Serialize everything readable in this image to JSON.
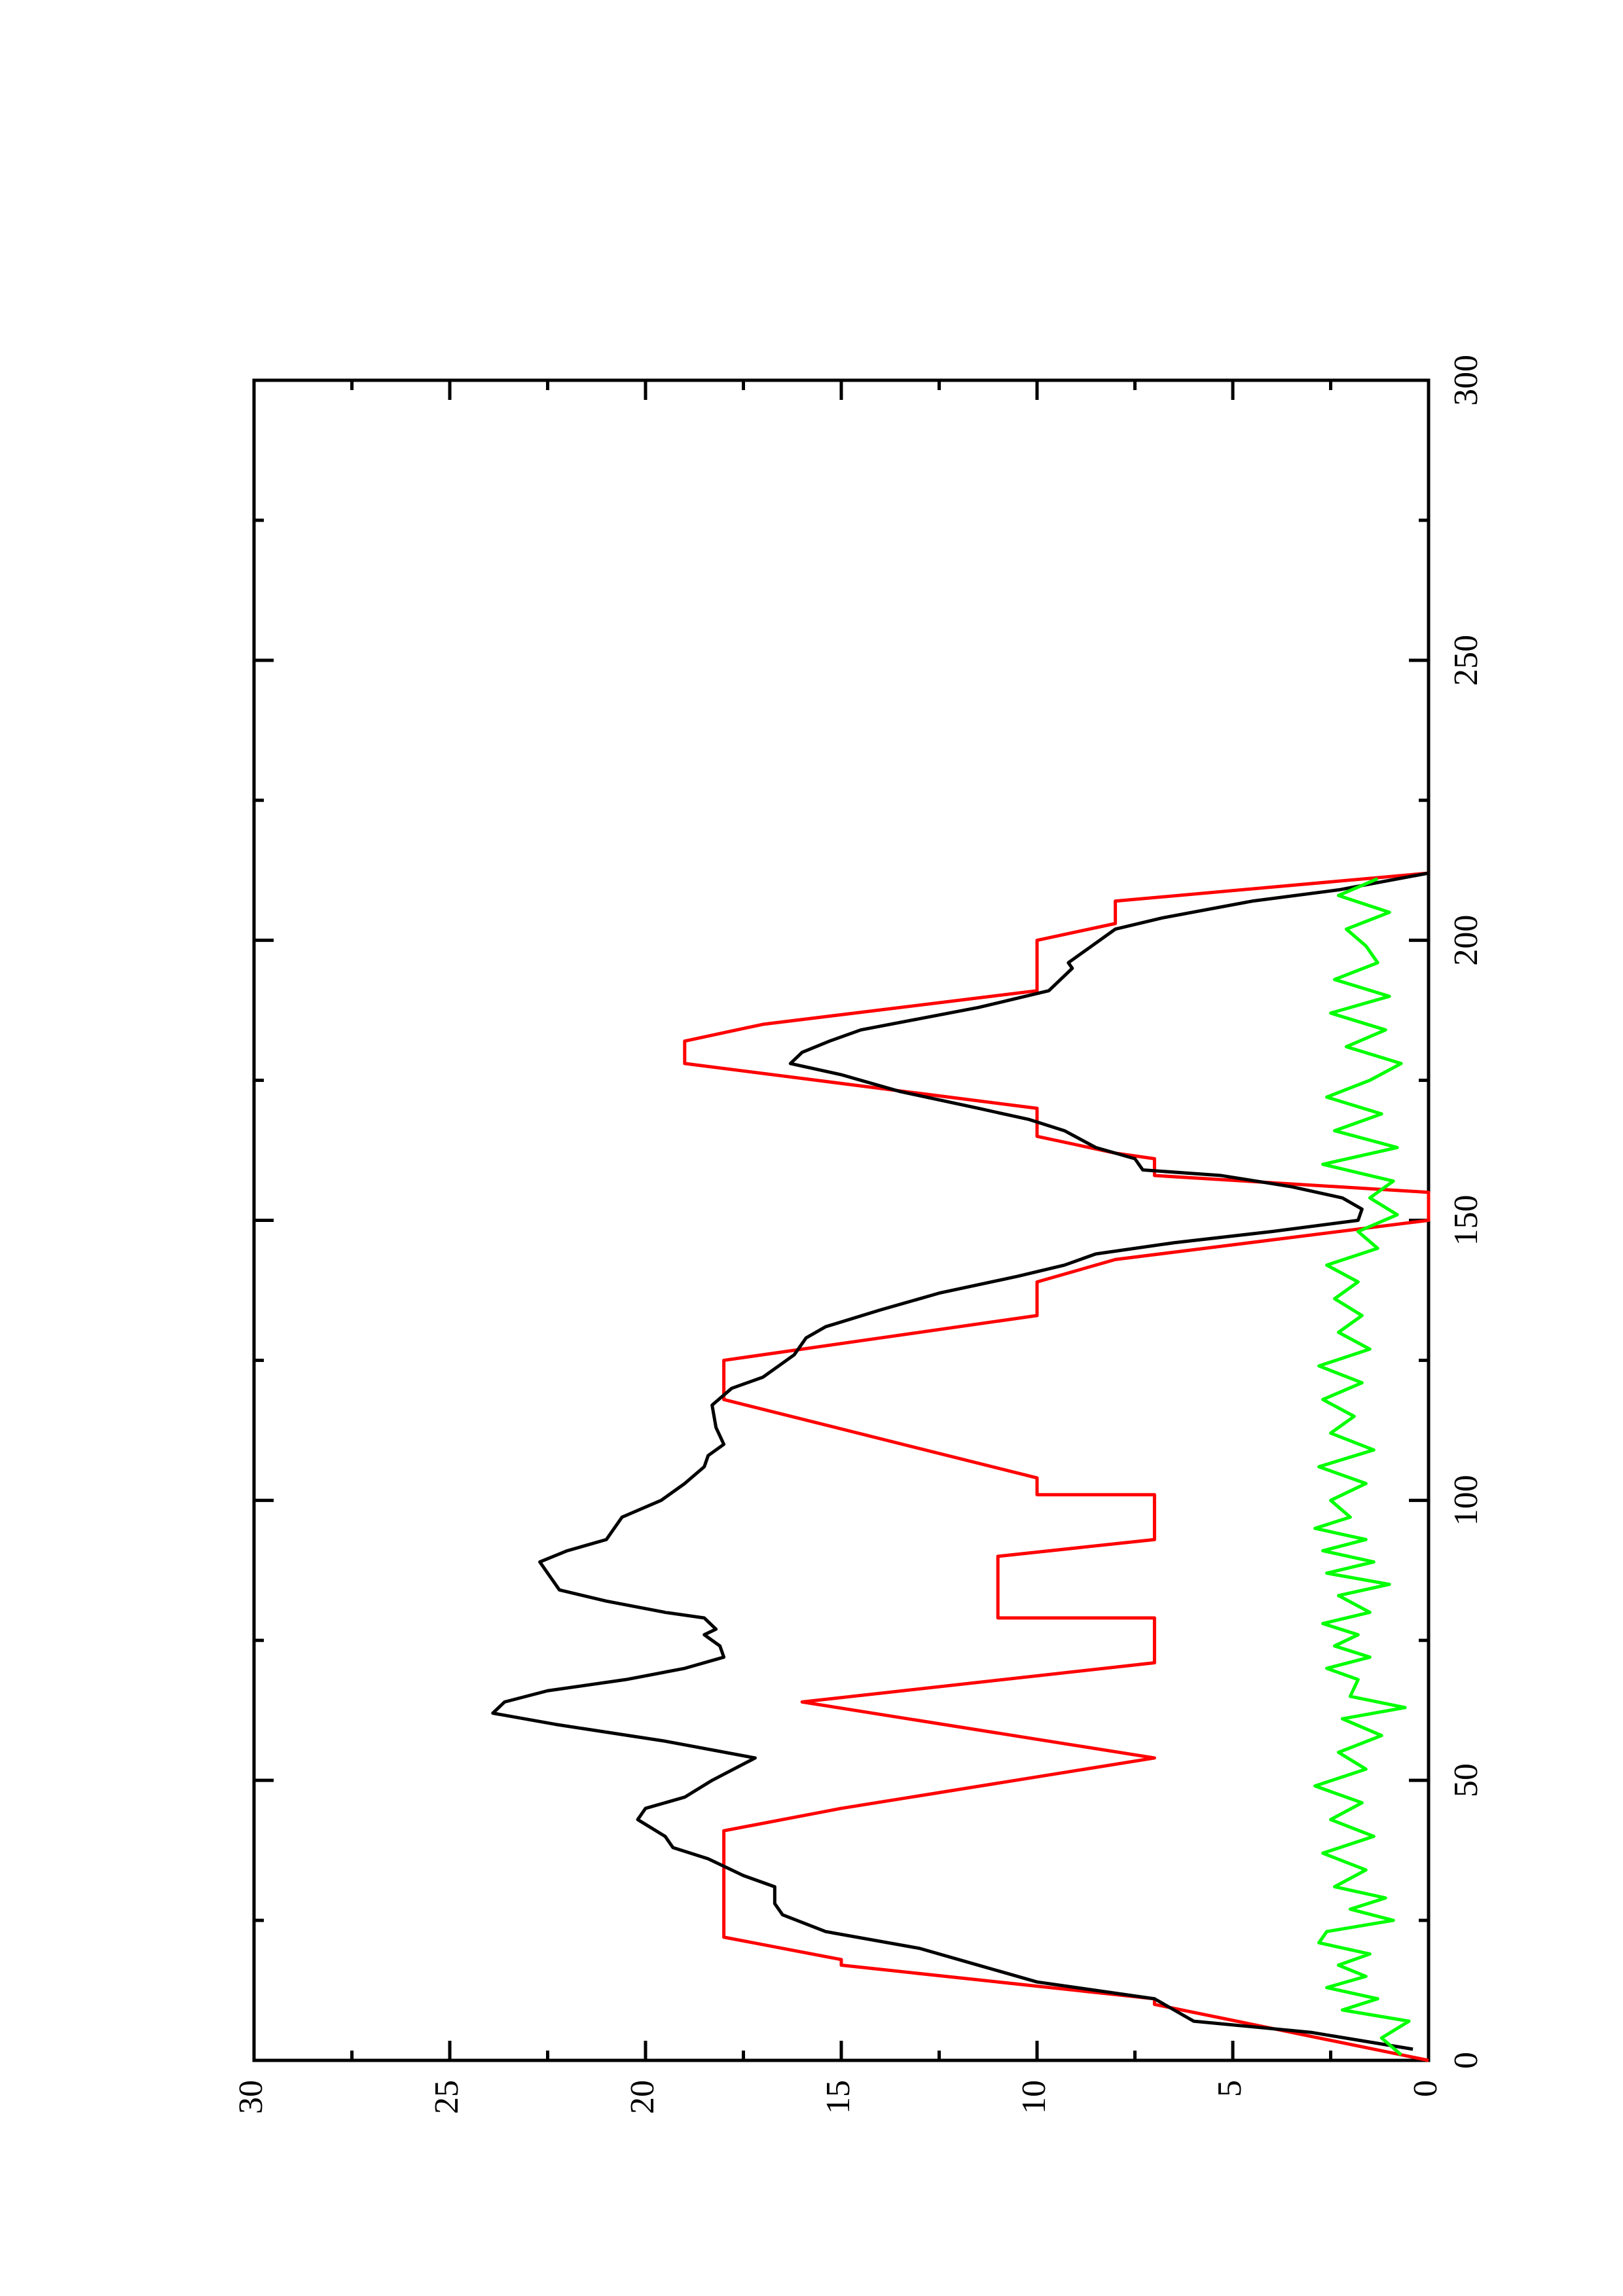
{
  "chart_data": {
    "type": "line",
    "x_positions_note_free": null,
    "series": [
      {
        "name": null,
        "color": "#ff0000",
        "x": [
          0,
          10,
          11,
          17,
          18,
          22,
          23,
          41,
          45,
          54,
          64,
          71,
          79,
          79,
          90,
          93,
          101,
          101,
          104,
          118,
          125,
          129,
          133,
          139,
          143,
          150,
          155,
          158,
          161,
          162,
          165,
          170,
          178,
          182,
          185,
          191,
          200,
          203,
          207,
          212
        ],
        "values": [
          0,
          7,
          7,
          15,
          15,
          18,
          18,
          18,
          15,
          7,
          16,
          7,
          7,
          11,
          11,
          7,
          7,
          10,
          10,
          18,
          18,
          14,
          10,
          10,
          8,
          0,
          0,
          7,
          7,
          8,
          10,
          10,
          19,
          19,
          17,
          10,
          10,
          8,
          8,
          0
        ]
      },
      {
        "name": null,
        "color": "#000000",
        "x": [
          2,
          5,
          7,
          9,
          11,
          14,
          17,
          20,
          23,
          26,
          28,
          31,
          33,
          36,
          38,
          40,
          43,
          45,
          47,
          50,
          54,
          57,
          60,
          62,
          64,
          66,
          68,
          70,
          72,
          74,
          76,
          77,
          79,
          80,
          82,
          84,
          86,
          89,
          91,
          93,
          95,
          97,
          100,
          103,
          106,
          108,
          110,
          113,
          117,
          120,
          122,
          124,
          126,
          129,
          131,
          134,
          137,
          140,
          142,
          144,
          146,
          148,
          150,
          152,
          154,
          156,
          158,
          159,
          161,
          163,
          166,
          168,
          170,
          173,
          176,
          178,
          180,
          182,
          184,
          186,
          188,
          191,
          193,
          195,
          196,
          199,
          202,
          204,
          207,
          209,
          212
        ],
        "values": [
          0.4,
          3,
          6,
          6.5,
          7,
          10,
          11.5,
          13,
          15.4,
          16.5,
          16.7,
          16.7,
          17.5,
          18.4,
          19.3,
          19.5,
          20.2,
          20,
          19,
          18.3,
          17.2,
          19.5,
          22.3,
          23.9,
          23.6,
          22.5,
          20.5,
          19,
          18,
          18.1,
          18.5,
          18.2,
          18.5,
          19.5,
          21,
          22.2,
          22.4,
          22.7,
          22,
          21,
          20.8,
          20.6,
          19.6,
          19,
          18.5,
          18.4,
          18,
          18.2,
          18.3,
          17.8,
          17,
          16.6,
          16.2,
          15.9,
          15.4,
          14,
          12.5,
          10.5,
          9.3,
          8.5,
          6.5,
          4,
          1.8,
          1.7,
          2.2,
          3.5,
          5.3,
          7.3,
          7.5,
          8.5,
          9.3,
          10.2,
          11.5,
          13.5,
          15,
          16.3,
          16,
          15.3,
          14.5,
          13,
          11.5,
          9.7,
          9.4,
          9.1,
          9.2,
          8.6,
          8,
          6.8,
          4.5,
          2.3,
          0
        ]
      },
      {
        "name": null,
        "color": "#00ff00",
        "x": [
          1,
          4,
          7,
          9,
          11,
          13,
          15,
          17,
          19,
          21,
          23,
          25,
          27,
          29,
          31,
          34,
          37,
          40,
          43,
          46,
          49,
          52,
          55,
          58,
          61,
          63,
          65,
          68,
          70,
          72,
          74,
          76,
          78,
          80,
          83,
          85,
          87,
          89,
          91,
          93,
          95,
          97,
          100,
          103,
          106,
          109,
          112,
          115,
          118,
          121,
          124,
          127,
          130,
          133,
          136,
          139,
          142,
          145,
          148,
          151,
          154,
          157,
          160,
          163,
          166,
          169,
          172,
          175,
          178,
          181,
          184,
          187,
          190,
          193,
          196,
          199,
          202,
          205,
          208,
          211
        ],
        "values": [
          0.7,
          1.2,
          0.5,
          2.2,
          1.3,
          2.6,
          1.6,
          2.3,
          1.5,
          2.8,
          2.6,
          0.9,
          2.0,
          1.1,
          2.4,
          1.6,
          2.7,
          1.4,
          2.5,
          1.7,
          2.9,
          1.6,
          2.3,
          1.2,
          2.2,
          0.6,
          2.0,
          1.8,
          2.6,
          1.5,
          2.4,
          1.8,
          2.7,
          1.5,
          2.3,
          1.0,
          2.6,
          1.4,
          2.7,
          1.6,
          2.9,
          2.0,
          2.5,
          1.6,
          2.8,
          1.4,
          2.5,
          1.9,
          2.7,
          1.7,
          2.8,
          1.5,
          2.3,
          1.7,
          2.4,
          1.8,
          2.6,
          1.3,
          1.8,
          0.8,
          1.5,
          0.9,
          2.7,
          0.8,
          2.4,
          1.2,
          2.6,
          1.5,
          0.7,
          2.1,
          1.1,
          2.5,
          1.0,
          2.4,
          1.3,
          1.6,
          2.1,
          1.0,
          2.3,
          1.3
        ]
      }
    ],
    "xlim": [
      0,
      300
    ],
    "xticks": [
      0,
      50,
      100,
      150,
      200,
      250,
      300
    ],
    "xticks_minor": [
      25,
      75,
      125,
      175,
      225,
      275
    ],
    "ylim": [
      0,
      30
    ],
    "yticks": [
      0,
      5,
      10,
      15,
      20,
      25,
      30
    ],
    "yticks_minor": [
      2.5,
      7.5,
      12.5,
      17.5,
      22.5,
      27.5
    ],
    "rotated": true
  }
}
